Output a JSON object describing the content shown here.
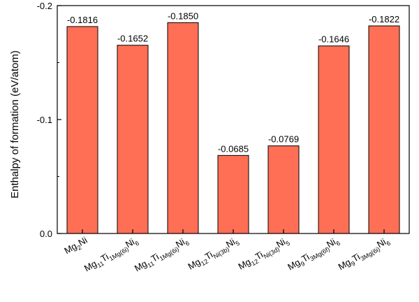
{
  "chart_data": {
    "type": "bar",
    "title": "",
    "xlabel": "",
    "ylabel": "Enthalpy of formation (eV/atom)",
    "ylim": [
      0.0,
      -0.2
    ],
    "y_axis_inverted": true,
    "y_ticks": [
      "-0.2",
      "-0.1",
      "0.0"
    ],
    "y_tick_values": [
      -0.2,
      -0.1,
      0.0
    ],
    "categories": [
      "Mg2Ni",
      "Mg11Ti1Mg(6i)Ni6",
      "Mg11Ti1Mg(6i)Ni6",
      "Mg12Ti1Ni(3b)Ni5",
      "Mg12Ti1Ni(3d)Ni5",
      "Mg9Ti3Mg(6f)Ni6",
      "Mg9Ti3Mg(6i)Ni6"
    ],
    "category_labels": [
      [
        {
          "t": "Mg"
        },
        {
          "t": "2",
          "s": 1
        },
        {
          "t": "Ni"
        }
      ],
      [
        {
          "t": "Mg"
        },
        {
          "t": "11",
          "s": 1
        },
        {
          "t": "Ti"
        },
        {
          "t": "1Mg(6i)",
          "s": 1
        },
        {
          "t": "Ni"
        },
        {
          "t": "6",
          "s": 1
        }
      ],
      [
        {
          "t": "Mg"
        },
        {
          "t": "11",
          "s": 1
        },
        {
          "t": "Ti"
        },
        {
          "t": "1Mg(6i)",
          "s": 1
        },
        {
          "t": "Ni"
        },
        {
          "t": "6",
          "s": 1
        }
      ],
      [
        {
          "t": "Mg"
        },
        {
          "t": "12",
          "s": 1
        },
        {
          "t": "Ti"
        },
        {
          "t": "Ni(3b)",
          "s": 1
        },
        {
          "t": "Ni"
        },
        {
          "t": "5",
          "s": 1
        }
      ],
      [
        {
          "t": "Mg"
        },
        {
          "t": "12",
          "s": 1
        },
        {
          "t": "Ti"
        },
        {
          "t": "Ni(3d)",
          "s": 1
        },
        {
          "t": "Ni"
        },
        {
          "t": "5",
          "s": 1
        }
      ],
      [
        {
          "t": "Mg"
        },
        {
          "t": "9",
          "s": 1
        },
        {
          "t": "Ti"
        },
        {
          "t": "3Mg(6f)",
          "s": 1
        },
        {
          "t": "Ni"
        },
        {
          "t": "6",
          "s": 1
        }
      ],
      [
        {
          "t": "Mg"
        },
        {
          "t": "9",
          "s": 1
        },
        {
          "t": "Ti"
        },
        {
          "t": "3Mg(6i)",
          "s": 1
        },
        {
          "t": "Ni"
        },
        {
          "t": "6",
          "s": 1
        }
      ]
    ],
    "values": [
      -0.1816,
      -0.1652,
      -0.185,
      -0.0685,
      -0.0769,
      -0.1646,
      -0.1822
    ],
    "data_labels": [
      "-0.1816",
      "-0.1652",
      "-0.1850",
      "-0.0685",
      "-0.0769",
      "-0.1646",
      "-0.1822"
    ],
    "bar_color": "#FF6F55",
    "bar_edge_color": "#000000",
    "grid": false,
    "legend": "none"
  }
}
